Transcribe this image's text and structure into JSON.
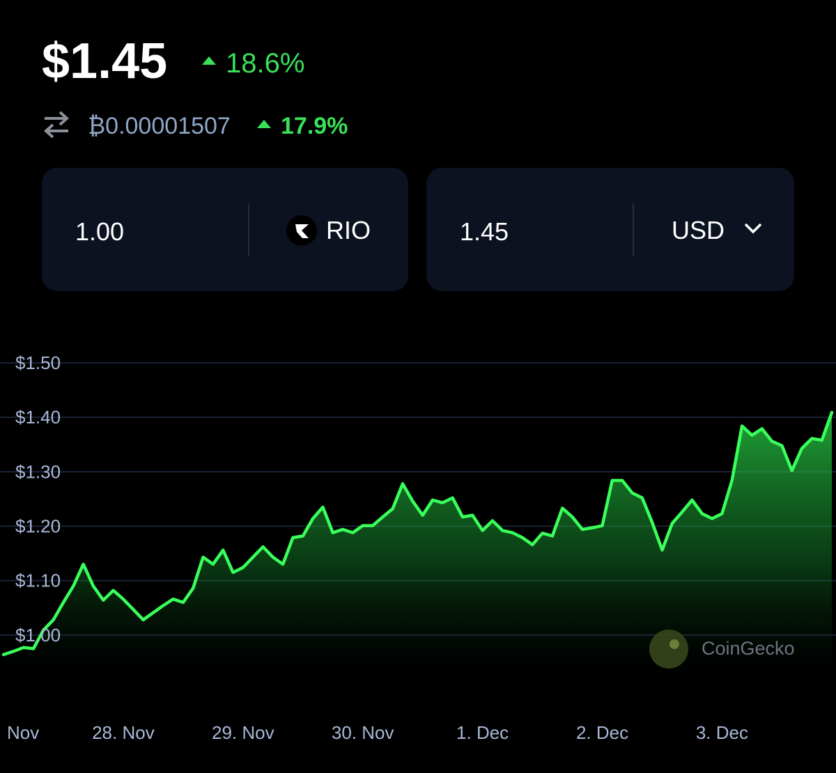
{
  "header": {
    "price": "$1.45",
    "price_change": "18.6%",
    "btc_price": "₿0.00001507",
    "btc_change": "17.9%"
  },
  "converter": {
    "from_amount": "1.00",
    "from_currency": "RIO",
    "to_amount": "1.45",
    "to_currency": "USD"
  },
  "watermark": "CoinGecko",
  "chart_data": {
    "type": "line",
    "categories": [
      "Nov",
      null,
      null,
      null,
      null,
      null,
      null,
      null,
      null,
      null,
      null,
      null,
      "28. Nov",
      null,
      null,
      null,
      null,
      null,
      null,
      null,
      null,
      null,
      null,
      null,
      "29. Nov",
      null,
      null,
      null,
      null,
      null,
      null,
      null,
      null,
      null,
      null,
      null,
      "30. Nov",
      null,
      null,
      null,
      null,
      null,
      null,
      null,
      null,
      null,
      null,
      null,
      "1. Dec",
      null,
      null,
      null,
      null,
      null,
      null,
      null,
      null,
      null,
      null,
      null,
      "2. Dec",
      null,
      null,
      null,
      null,
      null,
      null,
      null,
      null,
      null,
      null,
      null,
      "3. Dec",
      null,
      null,
      null,
      null,
      null,
      null,
      null,
      null,
      null,
      null,
      null
    ],
    "series": [
      {
        "color": "#39ff5a",
        "values": [
          0.964,
          0.97,
          0.977,
          0.975,
          1.009,
          1.028,
          1.06,
          1.09,
          1.13,
          1.09,
          1.064,
          1.082,
          1.066,
          1.047,
          1.028,
          1.041,
          1.054,
          1.066,
          1.06,
          1.086,
          1.143,
          1.13,
          1.156,
          1.115,
          1.124,
          1.143,
          1.162,
          1.143,
          1.13,
          1.179,
          1.182,
          1.214,
          1.235,
          1.188,
          1.194,
          1.188,
          1.201,
          1.201,
          1.217,
          1.232,
          1.278,
          1.246,
          1.22,
          1.248,
          1.243,
          1.252,
          1.217,
          1.22,
          1.192,
          1.21,
          1.192,
          1.188,
          1.179,
          1.166,
          1.187,
          1.182,
          1.233,
          1.217,
          1.194,
          1.197,
          1.201,
          1.284,
          1.284,
          1.261,
          1.252,
          1.207,
          1.156,
          1.205,
          1.226,
          1.248,
          1.223,
          1.214,
          1.223,
          1.284,
          1.384,
          1.367,
          1.379,
          1.356,
          1.348,
          1.302,
          1.343,
          1.361,
          1.358,
          1.409
        ]
      }
    ],
    "ylim": [
      0.9,
      1.55
    ],
    "yticks": [
      {
        "value": 1.0,
        "label": "$1.00"
      },
      {
        "value": 1.1,
        "label": "$1.10"
      },
      {
        "value": 1.2,
        "label": "$1.20"
      },
      {
        "value": 1.3,
        "label": "$1.30"
      },
      {
        "value": 1.4,
        "label": "$1.40"
      },
      {
        "value": 1.5,
        "label": "$1.50"
      }
    ],
    "grid": true
  }
}
